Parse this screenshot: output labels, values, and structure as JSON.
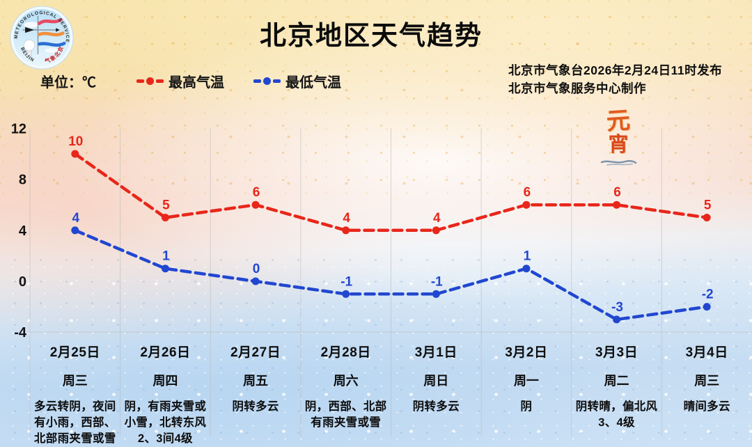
{
  "title": "北京地区天气趋势",
  "logo": {
    "top_text": "METEOROLOGICAL SERVICE",
    "left_text": "BEIJING",
    "bottom_right_text": "气象北京"
  },
  "legend": {
    "unit_label": "单位：℃",
    "series": [
      {
        "label": "最高气温",
        "color": "#e8261a"
      },
      {
        "label": "最低气温",
        "color": "#2147d0"
      }
    ]
  },
  "issue_info": {
    "line1": "北京市气象台2026年2月24日11时发布",
    "line2": "北京市气象服务中心制作"
  },
  "festival_mark": {
    "char1": "元",
    "char2": "宵"
  },
  "chart_data": {
    "type": "line",
    "title": "北京地区天气趋势",
    "unit": "℃",
    "x": [
      "2月25日",
      "2月26日",
      "2月27日",
      "2月28日",
      "3月1日",
      "3月2日",
      "3月3日",
      "3月4日"
    ],
    "weekdays": [
      "周三",
      "周四",
      "周五",
      "周六",
      "周日",
      "周一",
      "周二",
      "周三"
    ],
    "series": [
      {
        "name": "最高气温",
        "color": "#e8261a",
        "values": [
          10,
          5,
          6,
          4,
          4,
          6,
          6,
          5
        ]
      },
      {
        "name": "最低气温",
        "color": "#2147d0",
        "values": [
          4,
          1,
          0,
          -1,
          -1,
          1,
          -3,
          -2
        ]
      }
    ],
    "y_ticks": [
      12,
      8,
      4,
      0,
      -4
    ],
    "ylim": [
      -6,
      13
    ],
    "grid": "vertical column separators and bottom axis line only",
    "legend_position": "top-left",
    "line_style": "dashed with round point markers and value labels above points",
    "weather": [
      [
        "多云转阴，夜间",
        "有小雨，西部、",
        "北部雨夹雪或雪"
      ],
      [
        "阴，有雨夹雪或",
        "小雪，北转东风",
        "2、3间4级"
      ],
      [
        "阴转多云"
      ],
      [
        "阴，西部、北部",
        "有雨夹雪或雪"
      ],
      [
        "阴转多云"
      ],
      [
        "阴"
      ],
      [
        "阴转晴，偏北风",
        "3、4级"
      ],
      [
        "晴间多云"
      ]
    ]
  }
}
